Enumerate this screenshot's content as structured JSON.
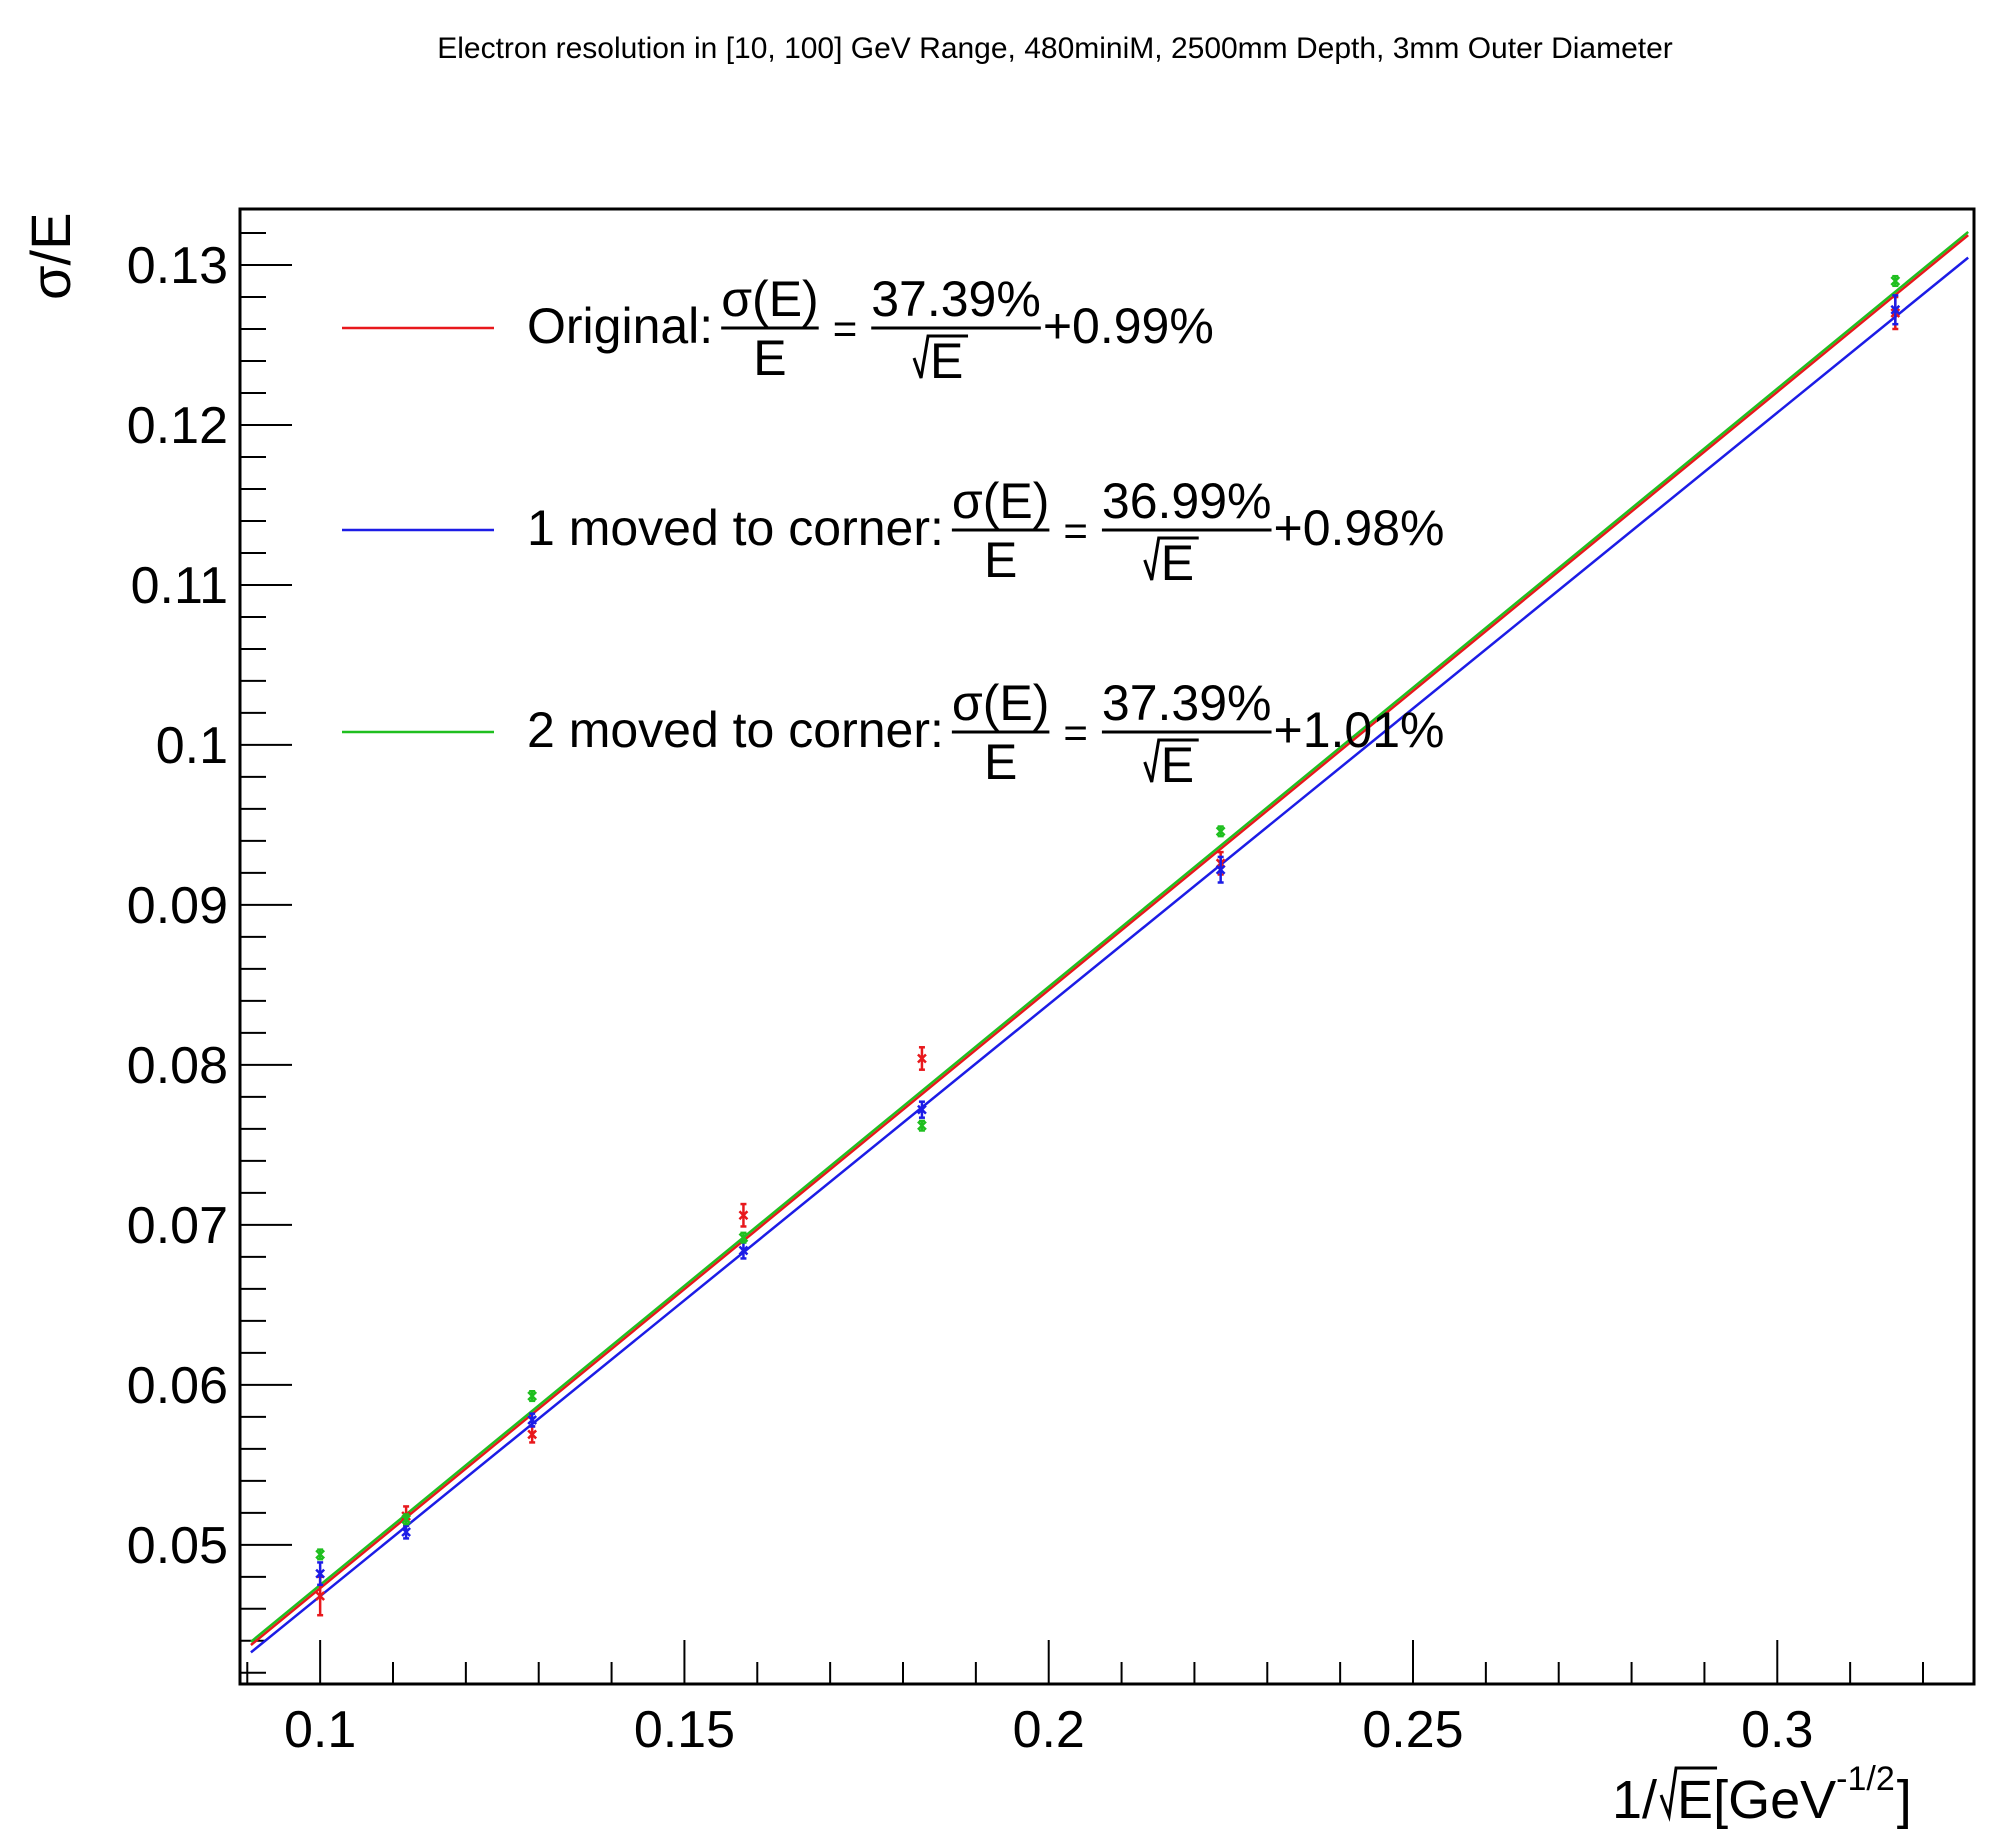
{
  "chart_data": {
    "type": "scatter",
    "title": "Electron resolution in [10, 100] GeV Range, 480miniM, 2500mm Depth, 3mm Outer Diameter",
    "xlabel": {
      "prefix": "1/",
      "radical": "E",
      "unit_prefix": " [GeV",
      "unit_sup": "-1/2",
      "unit_suffix": "]"
    },
    "ylabel": "σ/E",
    "xlim": [
      0.089,
      0.327
    ],
    "ylim": [
      0.0413,
      0.1335
    ],
    "grid": false,
    "legend_position": "top-left",
    "x_ticks": [
      {
        "value": 0.1,
        "label": "0.1"
      },
      {
        "value": 0.15,
        "label": "0.15"
      },
      {
        "value": 0.2,
        "label": "0.2"
      },
      {
        "value": 0.25,
        "label": "0.25"
      },
      {
        "value": 0.3,
        "label": "0.3"
      }
    ],
    "y_ticks": [
      {
        "value": 0.05,
        "label": "0.05"
      },
      {
        "value": 0.06,
        "label": "0.06"
      },
      {
        "value": 0.07,
        "label": "0.07"
      },
      {
        "value": 0.08,
        "label": "0.08"
      },
      {
        "value": 0.09,
        "label": "0.09"
      },
      {
        "value": 0.1,
        "label": "0.1"
      },
      {
        "value": 0.11,
        "label": "0.11"
      },
      {
        "value": 0.12,
        "label": "0.12"
      },
      {
        "value": 0.13,
        "label": "0.13"
      }
    ],
    "x": [
      0.1,
      0.1118,
      0.1291,
      0.1581,
      0.1826,
      0.2236,
      0.3162
    ],
    "series": [
      {
        "color": "#e8181c",
        "legend": {
          "name": "Original: ",
          "frac_num": "σ(E)",
          "frac_den": "E",
          "eq": "=",
          "coef": "37.39%",
          "radical": "E",
          "tail": "+0.99%"
        },
        "fit": {
          "slope": 0.3739,
          "intercept": 0.0099
        },
        "y": [
          0.0468,
          0.0518,
          0.0569,
          0.0706,
          0.0804,
          0.0926,
          0.127
        ],
        "err": [
          0.0012,
          0.0006,
          0.0005,
          0.0007,
          0.0007,
          0.0007,
          0.001
        ]
      },
      {
        "color": "#1c1ce6",
        "legend": {
          "name": "1 moved to corner: ",
          "frac_num": "σ(E)",
          "frac_den": "E",
          "eq": "=",
          "coef": "36.99%",
          "radical": "E",
          "tail": "+0.98%"
        },
        "fit": {
          "slope": 0.3699,
          "intercept": 0.0098
        },
        "y": [
          0.0482,
          0.0508,
          0.0578,
          0.0684,
          0.0772,
          0.0922,
          0.1272
        ],
        "err": [
          0.0007,
          0.0004,
          0.0004,
          0.0005,
          0.0005,
          0.0008,
          0.0009
        ]
      },
      {
        "color": "#1fbf1f",
        "legend": {
          "name": "2 moved to corner: ",
          "frac_num": "σ(E)",
          "frac_den": "E",
          "eq": "=",
          "coef": "37.39%",
          "radical": "E",
          "tail": "+1.01%"
        },
        "fit": {
          "slope": 0.3739,
          "intercept": 0.0101
        },
        "y": [
          0.0494,
          0.0516,
          0.0593,
          0.0692,
          0.0762,
          0.0946,
          0.129
        ],
        "err": [
          0.0003,
          0.0003,
          0.0003,
          0.0003,
          0.0003,
          0.0003,
          0.0003
        ]
      }
    ]
  }
}
